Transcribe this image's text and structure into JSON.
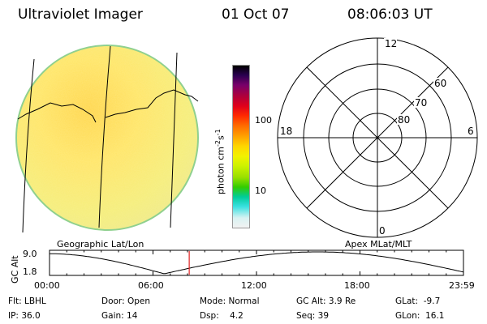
{
  "header": {
    "title": "Ultraviolet Imager",
    "date": "01 Oct 07",
    "time": "08:06:03 UT"
  },
  "colorbar": {
    "unit_label": "photon cm",
    "unit_sup1": "-2",
    "unit_mid": "s",
    "unit_sup2": "-1",
    "ticks": [
      "100",
      "10"
    ],
    "colors": [
      "#f2f2f2",
      "#d8f2f2",
      "#39e0e0",
      "#00cc99",
      "#33cc00",
      "#99e000",
      "#ccf200",
      "#f2f200",
      "#ffd700",
      "#ffa500",
      "#ff6a00",
      "#ff2a00",
      "#e0001a",
      "#b0003a",
      "#78006a",
      "#2a0050",
      "#000000"
    ]
  },
  "image_panel": {
    "footer_label": "Geographic Lat/Lon"
  },
  "polar_panel": {
    "mlt_labels": {
      "top": "12",
      "bottom": "0",
      "left": "18",
      "right": "6"
    },
    "lat_labels": [
      "60",
      "70",
      "80"
    ],
    "footer_label": "Apex MLat/MLT"
  },
  "altitude_plot": {
    "ylabel": "GC Alt",
    "yticks": [
      "9.0",
      "1.8"
    ],
    "xticks": [
      "00:00",
      "06:00",
      "12:00",
      "18:00",
      "23:59"
    ],
    "current_time_marker_hour": 8.1
  },
  "info": {
    "row1": [
      {
        "k": "Flt:",
        "v": "LBHL"
      },
      {
        "k": "Door:",
        "v": "Open"
      },
      {
        "k": "Mode:",
        "v": "Normal"
      },
      {
        "k": "GC Alt:",
        "v": "3.9 Re"
      },
      {
        "k": "GLat:",
        "v": "-9.7"
      }
    ],
    "row2": [
      {
        "k": "IP:",
        "v": "36.0"
      },
      {
        "k": "Gain:",
        "v": "14"
      },
      {
        "k": "Dsp:",
        "v": "4.2"
      },
      {
        "k": "Seq:",
        "v": "39"
      },
      {
        "k": "GLon:",
        "v": "16.1"
      }
    ]
  }
}
